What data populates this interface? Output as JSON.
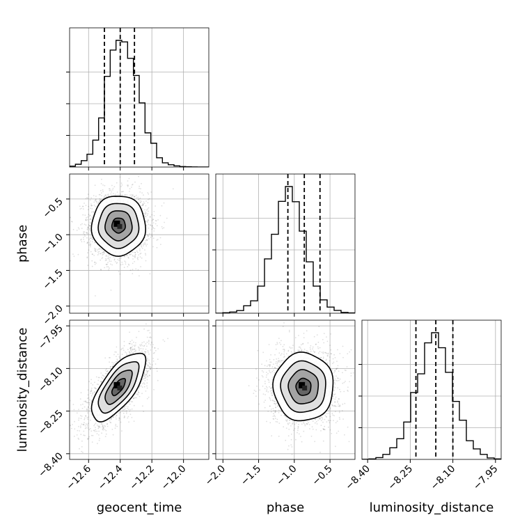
{
  "chart_data": {
    "type": "corner",
    "grid": true,
    "parameters": [
      {
        "name": "geocent_time",
        "range": [
          -12.72,
          -11.84
        ],
        "ticks": [
          -12.6,
          -12.4,
          -12.2,
          -12.0
        ],
        "tick_labels": [
          "−12.6",
          "−12.4",
          "−12.2",
          "−12.0"
        ],
        "quantiles": [
          -12.5,
          -12.4,
          -12.31
        ],
        "mean": -12.41,
        "sd": 0.085
      },
      {
        "name": "phase",
        "range": [
          -2.1,
          -0.15
        ],
        "ticks": [
          -2.0,
          -1.5,
          -1.0,
          -0.5
        ],
        "tick_labels": [
          "−2.0",
          "−1.5",
          "−1.0",
          "−0.5"
        ],
        "quantiles": [
          -1.09,
          -0.86,
          -0.64
        ],
        "mean": -0.87,
        "sd": 0.21
      },
      {
        "name": "luminosity_distance",
        "range": [
          -8.42,
          -7.93
        ],
        "ticks": [
          -8.4,
          -8.25,
          -8.1,
          -7.95
        ],
        "tick_labels": [
          "−8.40",
          "−8.25",
          "−8.10",
          "−7.95"
        ],
        "quantiles": [
          -8.23,
          -8.16,
          -8.1
        ],
        "mean": -8.165,
        "sd": 0.06
      }
    ],
    "histograms": [
      {
        "param": "geocent_time",
        "bins": 24,
        "counts": [
          10,
          31,
          71,
          143,
          299,
          546,
          1008,
          1300,
          1408,
          1391,
          1208,
          1018,
          713,
          380,
          265,
          103,
          47,
          26,
          13,
          5,
          3,
          1,
          0,
          0
        ]
      },
      {
        "param": "phase",
        "bins": 20,
        "counts": [
          0,
          3,
          7,
          16,
          45,
          75,
          164,
          329,
          478,
          677,
          767,
          675,
          497,
          311,
          164,
          81,
          37,
          17,
          5,
          2
        ]
      },
      {
        "param": "luminosity_distance",
        "bins": 20,
        "counts": [
          1,
          3,
          11,
          31,
          72,
          128,
          232,
          415,
          531,
          723,
          786,
          693,
          540,
          360,
          243,
          116,
          65,
          31,
          9,
          3
        ]
      }
    ],
    "correlations": [
      {
        "x": "geocent_time",
        "y": "phase",
        "rho": 0.0
      },
      {
        "x": "geocent_time",
        "y": "luminosity_distance",
        "rho": 0.7
      },
      {
        "x": "phase",
        "y": "luminosity_distance",
        "rho": 0.0
      }
    ],
    "contour_levels_sigma": [
      0.5,
      1.0,
      1.5,
      2.0
    ],
    "scatter_points": 2500
  }
}
